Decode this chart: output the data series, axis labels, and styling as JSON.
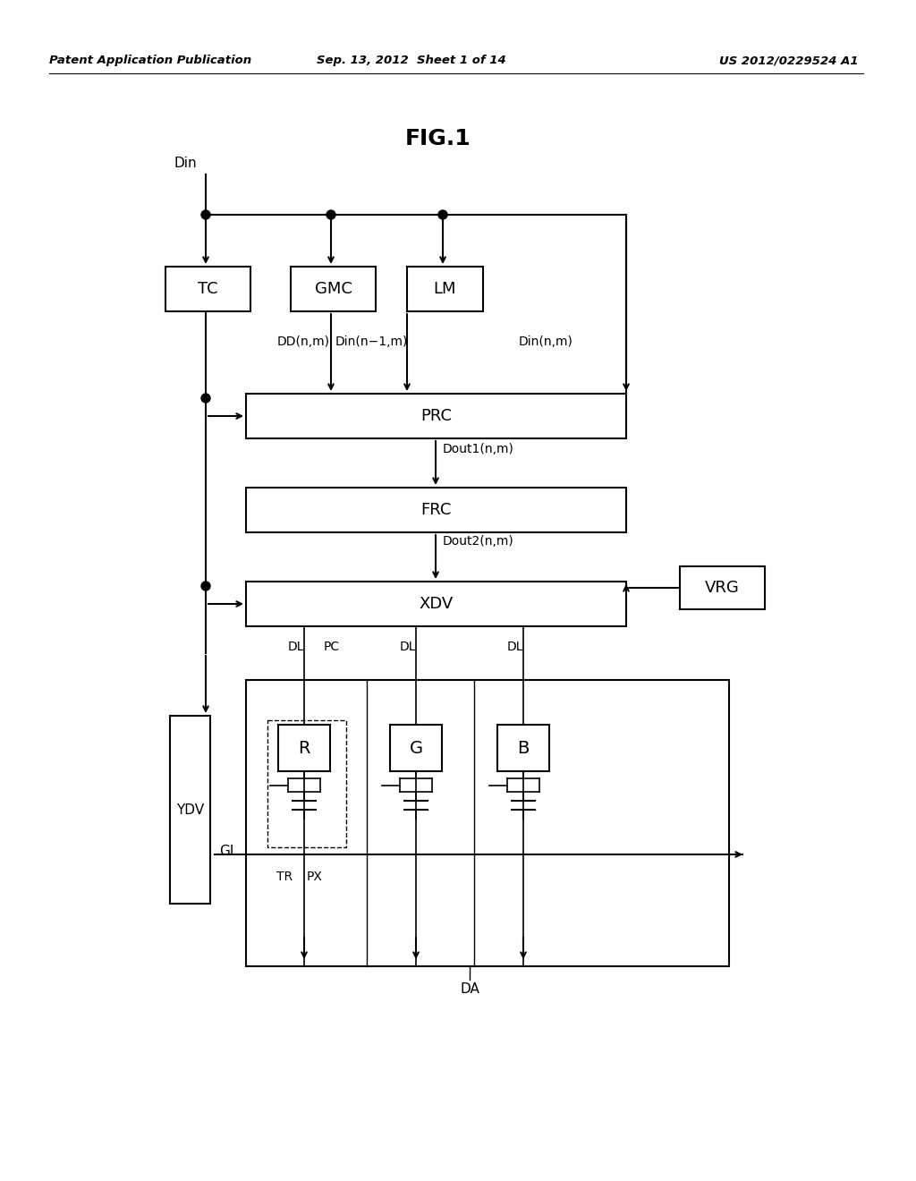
{
  "title": "FIG.1",
  "header_left": "Patent Application Publication",
  "header_center": "Sep. 13, 2012  Sheet 1 of 14",
  "header_right": "US 2012/0229524 A1",
  "bg_color": "#ffffff",
  "lc": "#000000"
}
